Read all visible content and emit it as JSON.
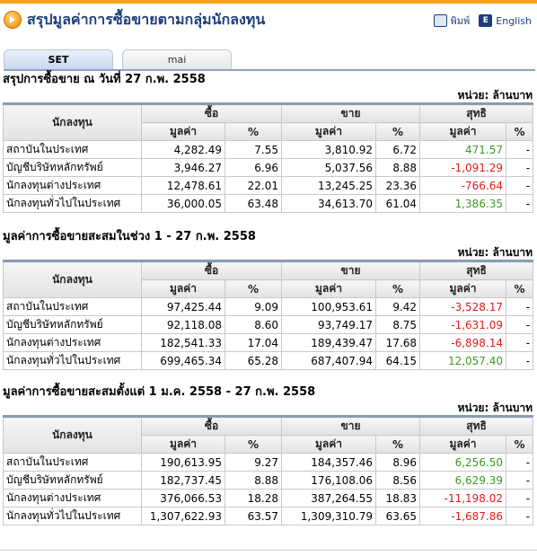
{
  "header": {
    "title": "สรุปมูลค่าการซื้อขายตามกลุ่มนักลงทุน",
    "print": "พิมพ์",
    "english": "English"
  },
  "tabs": [
    "SET",
    "mai"
  ],
  "columns": {
    "investor": "นักลงทุน",
    "buy": "ซื้อ",
    "sell": "ขาย",
    "net": "สุทธิ",
    "value": "มูลค่า",
    "percent": "%"
  },
  "sections": [
    {
      "title": "สรุปการซื้อขาย ณ วันที่ 27 ก.พ. 2558",
      "unit": "หน่วย: ล้านบาท",
      "rows": [
        [
          "สถาบันในประเทศ",
          "4,282.49",
          "7.55",
          "3,810.92",
          "6.72",
          "471.57",
          "-"
        ],
        [
          "บัญชีบริษัทหลักทรัพย์",
          "3,946.27",
          "6.96",
          "5,037.56",
          "8.88",
          "-1,091.29",
          "-"
        ],
        [
          "นักลงทุนต่างประเทศ",
          "12,478.61",
          "22.01",
          "13,245.25",
          "23.36",
          "-766.64",
          "-"
        ],
        [
          "นักลงทุนทั่วไปในประเทศ",
          "36,000.05",
          "63.48",
          "34,613.70",
          "61.04",
          "1,386.35",
          "-"
        ]
      ]
    },
    {
      "title": "มูลค่าการซื้อขายสะสมในช่วง 1 - 27 ก.พ. 2558",
      "unit": "หน่วย: ล้านบาท",
      "rows": [
        [
          "สถาบันในประเทศ",
          "97,425.44",
          "9.09",
          "100,953.61",
          "9.42",
          "-3,528.17",
          "-"
        ],
        [
          "บัญชีบริษัทหลักทรัพย์",
          "92,118.08",
          "8.60",
          "93,749.17",
          "8.75",
          "-1,631.09",
          "-"
        ],
        [
          "นักลงทุนต่างประเทศ",
          "182,541.33",
          "17.04",
          "189,439.47",
          "17.68",
          "-6,898.14",
          "-"
        ],
        [
          "นักลงทุนทั่วไปในประเทศ",
          "699,465.34",
          "65.28",
          "687,407.94",
          "64.15",
          "12,057.40",
          "-"
        ]
      ]
    },
    {
      "title": "มูลค่าการซื้อขายสะสมตั้งแต่ 1 ม.ค. 2558 - 27 ก.พ. 2558",
      "unit": "หน่วย: ล้านบาท",
      "rows": [
        [
          "สถาบันในประเทศ",
          "190,613.95",
          "9.27",
          "184,357.46",
          "8.96",
          "6,256.50",
          "-"
        ],
        [
          "บัญชีบริษัทหลักทรัพย์",
          "182,737.45",
          "8.88",
          "176,108.06",
          "8.56",
          "6,629.39",
          "-"
        ],
        [
          "นักลงทุนต่างประเทศ",
          "376,066.53",
          "18.28",
          "387,264.55",
          "18.83",
          "-11,198.02",
          "-"
        ],
        [
          "นักลงทุนทั่วไปในประเทศ",
          "1,307,622.93",
          "63.57",
          "1,309,310.79",
          "63.65",
          "-1,687.86",
          "-"
        ]
      ]
    }
  ]
}
